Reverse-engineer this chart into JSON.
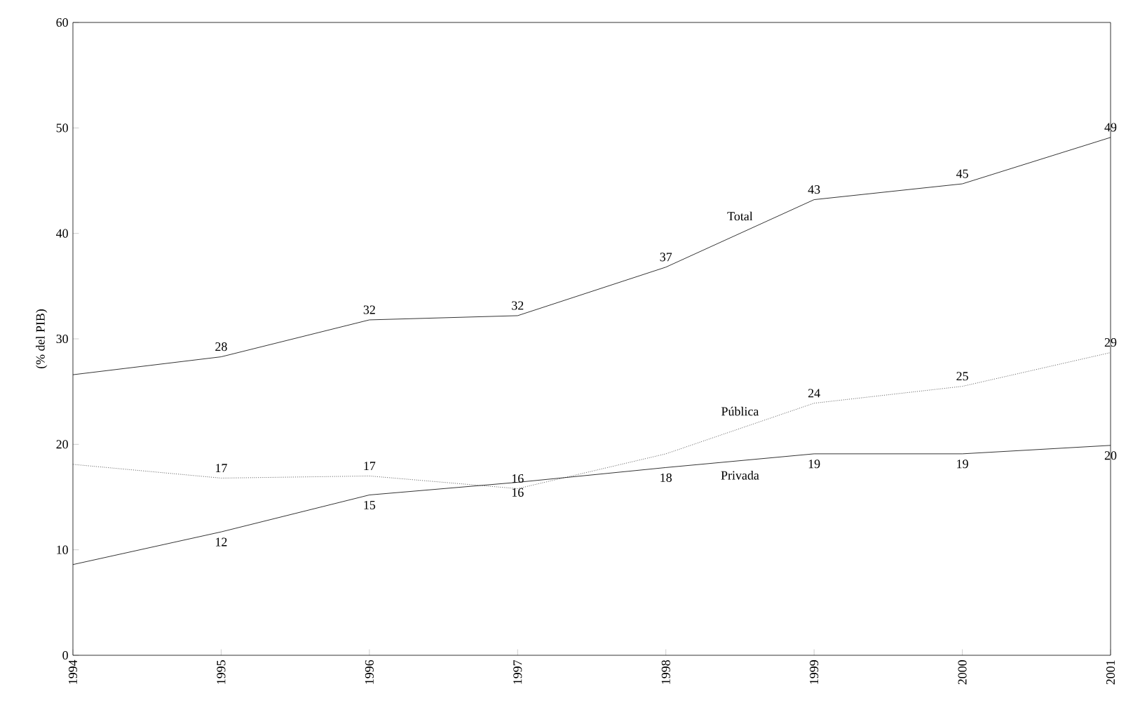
{
  "chart_data": {
    "type": "line",
    "ylabel": "(% del PIB)",
    "x": [
      1994,
      1995,
      1996,
      1997,
      1998,
      1999,
      2000,
      2001
    ],
    "xlim": [
      1994,
      2001
    ],
    "xticks": [
      1994,
      1995,
      1996,
      1997,
      1998,
      1999,
      2000,
      2001
    ],
    "ylim": [
      0,
      60
    ],
    "yticks": [
      0,
      10,
      20,
      30,
      40,
      50,
      60
    ],
    "grid": false,
    "legend": false,
    "marker": "none",
    "series": [
      {
        "name": "Total",
        "color": "#000000",
        "line_style": "solid",
        "values": [
          26.6,
          28.3,
          31.8,
          32.2,
          36.8,
          43.2,
          44.7,
          49.1
        ],
        "value_labels": [
          null,
          "28",
          "32",
          "32",
          "37",
          "43",
          "45",
          "49"
        ]
      },
      {
        "name": "Pública",
        "color": "#000000",
        "line_style": "dotted",
        "values": [
          18.1,
          16.8,
          17.0,
          15.8,
          19.1,
          23.9,
          25.5,
          28.7
        ],
        "value_labels": [
          null,
          "17",
          "17",
          "16",
          null,
          "24",
          "25",
          "29"
        ]
      },
      {
        "name": "Privada",
        "color": "#000000",
        "line_style": "solid",
        "values": [
          8.6,
          11.7,
          15.2,
          16.4,
          17.8,
          19.1,
          19.1,
          19.9
        ],
        "value_labels": [
          null,
          "12",
          "15",
          "16",
          "18",
          "19",
          "19",
          "20"
        ]
      }
    ]
  }
}
